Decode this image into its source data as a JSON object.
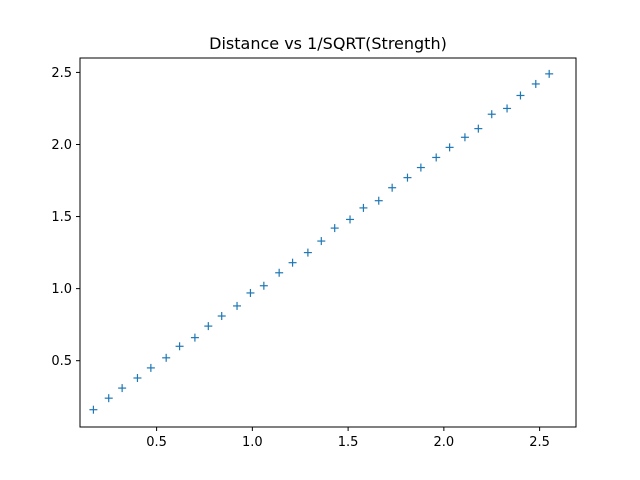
{
  "chart_data": {
    "type": "scatter",
    "title": "Distance vs 1/SQRT(Strength)",
    "xlabel": "",
    "ylabel": "",
    "marker": "+",
    "color": "#1f77b4",
    "xlim": [
      0.1,
      2.69
    ],
    "ylim": [
      0.04,
      2.6
    ],
    "xticks": [
      0.5,
      1.0,
      1.5,
      2.0,
      2.5
    ],
    "xtick_labels": [
      "0.5",
      "1.0",
      "1.5",
      "2.0",
      "2.5"
    ],
    "yticks": [
      0.5,
      1.0,
      1.5,
      2.0,
      2.5
    ],
    "ytick_labels": [
      "0.5",
      "1.0",
      "1.5",
      "2.0",
      "2.5"
    ],
    "grid": false,
    "series": [
      {
        "points": [
          [
            0.17,
            0.16
          ],
          [
            0.25,
            0.24
          ],
          [
            0.32,
            0.31
          ],
          [
            0.4,
            0.38
          ],
          [
            0.47,
            0.45
          ],
          [
            0.55,
            0.52
          ],
          [
            0.62,
            0.6
          ],
          [
            0.7,
            0.66
          ],
          [
            0.77,
            0.74
          ],
          [
            0.84,
            0.81
          ],
          [
            0.92,
            0.88
          ],
          [
            0.99,
            0.97
          ],
          [
            1.06,
            1.02
          ],
          [
            1.14,
            1.11
          ],
          [
            1.21,
            1.18
          ],
          [
            1.29,
            1.25
          ],
          [
            1.36,
            1.33
          ],
          [
            1.43,
            1.42
          ],
          [
            1.51,
            1.48
          ],
          [
            1.58,
            1.56
          ],
          [
            1.66,
            1.61
          ],
          [
            1.73,
            1.7
          ],
          [
            1.81,
            1.77
          ],
          [
            1.88,
            1.84
          ],
          [
            1.96,
            1.91
          ],
          [
            2.03,
            1.98
          ],
          [
            2.11,
            2.05
          ],
          [
            2.18,
            2.11
          ],
          [
            2.25,
            2.21
          ],
          [
            2.33,
            2.25
          ],
          [
            2.4,
            2.34
          ],
          [
            2.48,
            2.42
          ],
          [
            2.55,
            2.49
          ]
        ]
      }
    ]
  }
}
